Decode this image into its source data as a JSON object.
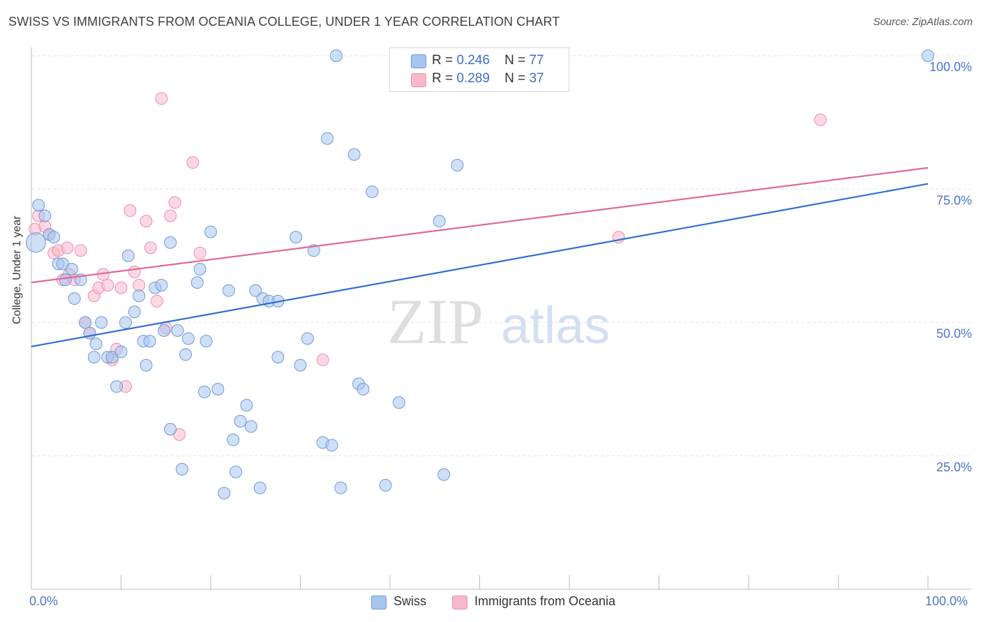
{
  "header": {
    "title": "SWISS VS IMMIGRANTS FROM OCEANIA COLLEGE, UNDER 1 YEAR CORRELATION CHART",
    "source": "Source: ZipAtlas.com"
  },
  "watermark": {
    "part1": "ZIP",
    "part2": "atlas"
  },
  "legend": {
    "rows": [
      {
        "r_label": "R =",
        "r_value": "0.246",
        "n_label": "N =",
        "n_value": "77"
      },
      {
        "r_label": "R =",
        "r_value": "0.289",
        "n_label": "N =",
        "n_value": "37"
      }
    ]
  },
  "bottom_legend": {
    "swiss": "Swiss",
    "oceania": "Immigrants from Oceania"
  },
  "colors": {
    "swiss_fill": "#a8c5ef",
    "swiss_stroke": "#6f9ad9",
    "swiss_line": "#2f6fd0",
    "oceania_fill": "#f7b8cb",
    "oceania_stroke": "#ec8fab",
    "oceania_line": "#e06a95",
    "tick_text": "#4a76c8"
  },
  "chart_data": {
    "type": "scatter",
    "xlabel": "",
    "ylabel": "College, Under 1 year",
    "xlim": [
      0,
      100
    ],
    "ylim": [
      0,
      100
    ],
    "x_tick_labels": [
      "0.0%",
      "100.0%"
    ],
    "y_ticks": [
      {
        "value": 25,
        "label": "25.0%"
      },
      {
        "value": 50,
        "label": "50.0%"
      },
      {
        "value": 75,
        "label": "75.0%"
      },
      {
        "value": 100,
        "label": "100.0%"
      }
    ],
    "grid": "horizontal dashed",
    "legend_position": "top-center",
    "series": [
      {
        "name": "Swiss",
        "trend": [
          [
            0,
            45.5
          ],
          [
            100,
            76.0
          ]
        ],
        "points": [
          [
            0.5,
            65.0
          ],
          [
            0.8,
            72.0
          ],
          [
            1.5,
            70.0
          ],
          [
            2.0,
            66.5
          ],
          [
            2.5,
            66.0
          ],
          [
            3.0,
            61.0
          ],
          [
            3.5,
            61.0
          ],
          [
            3.8,
            58.0
          ],
          [
            4.5,
            60.0
          ],
          [
            4.8,
            54.5
          ],
          [
            5.5,
            58.0
          ],
          [
            6.0,
            50.0
          ],
          [
            6.5,
            48.0
          ],
          [
            7.2,
            46.0
          ],
          [
            7.0,
            43.5
          ],
          [
            7.8,
            50.0
          ],
          [
            8.5,
            43.5
          ],
          [
            9.0,
            43.5
          ],
          [
            9.5,
            38.0
          ],
          [
            10.0,
            44.5
          ],
          [
            10.5,
            50.0
          ],
          [
            10.8,
            62.5
          ],
          [
            11.5,
            52.0
          ],
          [
            12.0,
            55.0
          ],
          [
            12.5,
            46.5
          ],
          [
            12.8,
            42.0
          ],
          [
            13.2,
            46.5
          ],
          [
            13.8,
            56.5
          ],
          [
            14.5,
            57.0
          ],
          [
            14.8,
            48.5
          ],
          [
            15.5,
            30.0
          ],
          [
            15.5,
            65.0
          ],
          [
            16.3,
            48.5
          ],
          [
            16.8,
            22.5
          ],
          [
            17.2,
            44.0
          ],
          [
            17.5,
            47.0
          ],
          [
            18.5,
            57.5
          ],
          [
            18.8,
            60.0
          ],
          [
            19.3,
            37.0
          ],
          [
            19.5,
            46.5
          ],
          [
            20.0,
            67.0
          ],
          [
            20.8,
            37.5
          ],
          [
            21.5,
            18.0
          ],
          [
            22.0,
            56.0
          ],
          [
            22.5,
            28.0
          ],
          [
            22.8,
            22.0
          ],
          [
            23.3,
            31.5
          ],
          [
            24.0,
            34.5
          ],
          [
            24.5,
            30.5
          ],
          [
            25.0,
            56.0
          ],
          [
            25.5,
            19.0
          ],
          [
            25.8,
            54.5
          ],
          [
            26.5,
            54.0
          ],
          [
            27.5,
            43.5
          ],
          [
            27.5,
            54.0
          ],
          [
            29.5,
            66.0
          ],
          [
            30.0,
            42.0
          ],
          [
            30.8,
            47.0
          ],
          [
            31.5,
            63.5
          ],
          [
            32.5,
            27.5
          ],
          [
            33.0,
            84.5
          ],
          [
            33.5,
            27.0
          ],
          [
            34.0,
            100.0
          ],
          [
            34.5,
            19.0
          ],
          [
            36.0,
            81.5
          ],
          [
            36.5,
            38.5
          ],
          [
            37.0,
            37.5
          ],
          [
            38.0,
            74.5
          ],
          [
            39.5,
            19.5
          ],
          [
            41.0,
            35.0
          ],
          [
            43.0,
            100.0
          ],
          [
            45.5,
            69.0
          ],
          [
            46.0,
            21.5
          ],
          [
            47.5,
            79.5
          ],
          [
            48.5,
            100.0
          ],
          [
            50.5,
            100.0
          ],
          [
            100.0,
            100.0
          ]
        ]
      },
      {
        "name": "Immigrants from Oceania",
        "trend": [
          [
            0,
            57.5
          ],
          [
            100,
            79.0
          ]
        ],
        "points": [
          [
            0.4,
            67.5
          ],
          [
            0.8,
            70.0
          ],
          [
            1.5,
            68.0
          ],
          [
            2.0,
            66.5
          ],
          [
            2.5,
            63.0
          ],
          [
            3.0,
            63.5
          ],
          [
            3.5,
            58.0
          ],
          [
            4.0,
            64.0
          ],
          [
            4.2,
            59.0
          ],
          [
            4.8,
            58.0
          ],
          [
            5.5,
            63.5
          ],
          [
            6.0,
            50.0
          ],
          [
            6.5,
            48.0
          ],
          [
            7.0,
            55.0
          ],
          [
            7.5,
            56.5
          ],
          [
            8.0,
            59.0
          ],
          [
            8.5,
            57.0
          ],
          [
            9.0,
            43.0
          ],
          [
            9.5,
            45.0
          ],
          [
            10.0,
            56.5
          ],
          [
            10.5,
            38.0
          ],
          [
            11.0,
            71.0
          ],
          [
            11.5,
            59.5
          ],
          [
            12.0,
            57.0
          ],
          [
            12.8,
            69.0
          ],
          [
            13.3,
            64.0
          ],
          [
            14.0,
            54.0
          ],
          [
            14.5,
            92.0
          ],
          [
            15.0,
            49.0
          ],
          [
            15.5,
            70.0
          ],
          [
            16.0,
            72.5
          ],
          [
            16.5,
            29.0
          ],
          [
            18.0,
            80.0
          ],
          [
            18.8,
            63.0
          ],
          [
            32.5,
            43.0
          ],
          [
            65.5,
            66.0
          ],
          [
            88.0,
            88.0
          ]
        ]
      }
    ]
  }
}
